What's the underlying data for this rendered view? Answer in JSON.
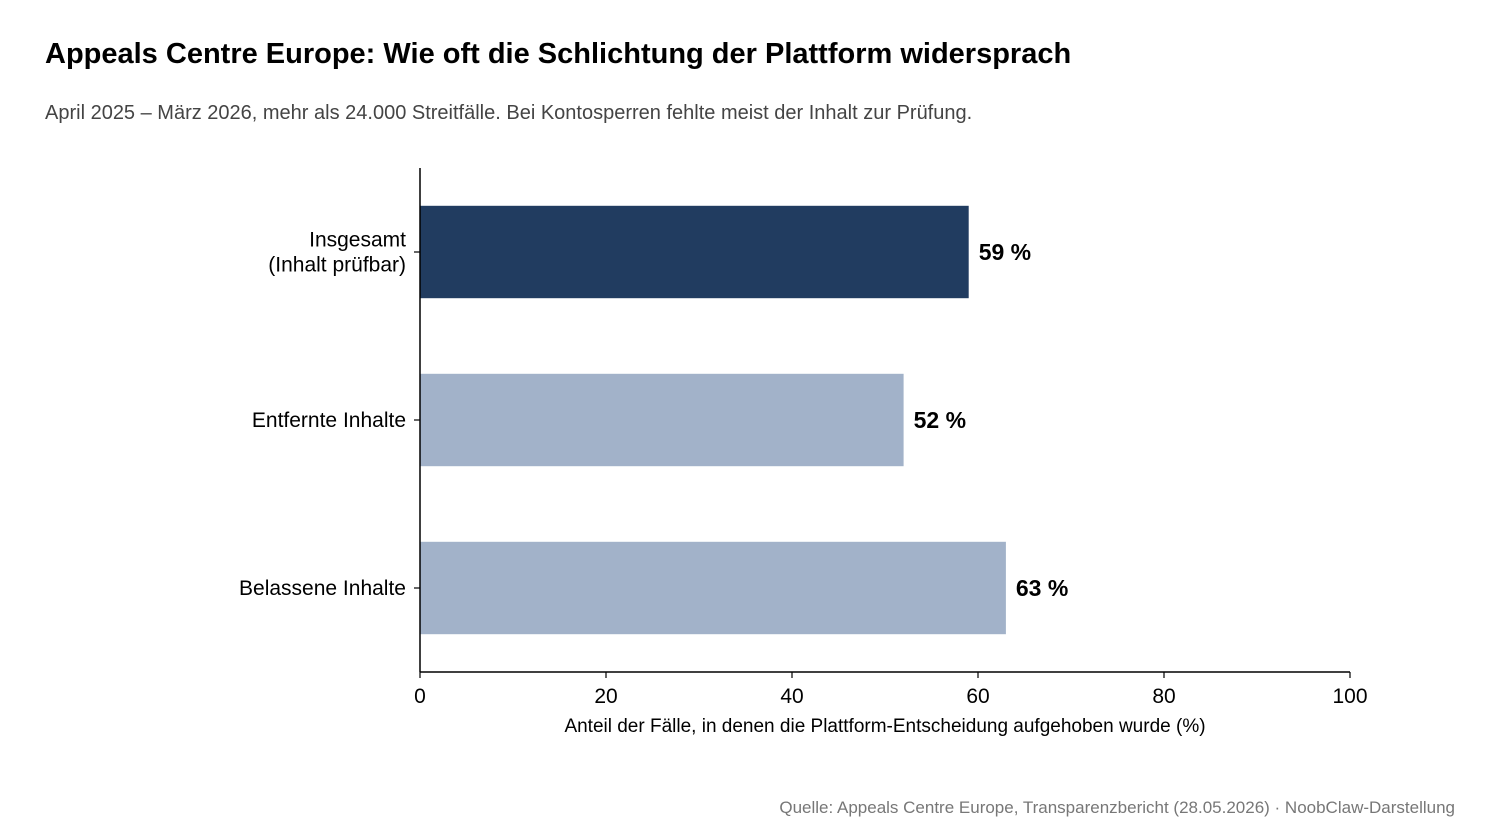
{
  "title": "Appeals Centre Europe: Wie oft die Schlichtung der Plattform widersprach",
  "subtitle": "April 2025 – März 2026, mehr als 24.000 Streitfälle. Bei Kontosperren fehlte meist der Inhalt zur Prüfung.",
  "source": "Quelle: Appeals Centre Europe, Transparenzbericht (28.05.2026) · NoobClaw-Darstellung",
  "chart_data": {
    "type": "bar",
    "orientation": "horizontal",
    "categories": [
      [
        "Insgesamt",
        "(Inhalt prüfbar)"
      ],
      [
        "Entfernte Inhalte"
      ],
      [
        "Belassene Inhalte"
      ]
    ],
    "values": [
      59,
      52,
      63
    ],
    "value_labels": [
      "59 %",
      "52 %",
      "63 %"
    ],
    "colors": [
      "#213c60",
      "#a2b2c9",
      "#a2b2c9"
    ],
    "xlabel": "Anteil der Fälle, in denen die Plattform-Entscheidung aufgehoben wurde (%)",
    "xlim": [
      0,
      100
    ],
    "xticks": [
      0,
      20,
      40,
      60,
      80,
      100
    ],
    "grid": false
  }
}
